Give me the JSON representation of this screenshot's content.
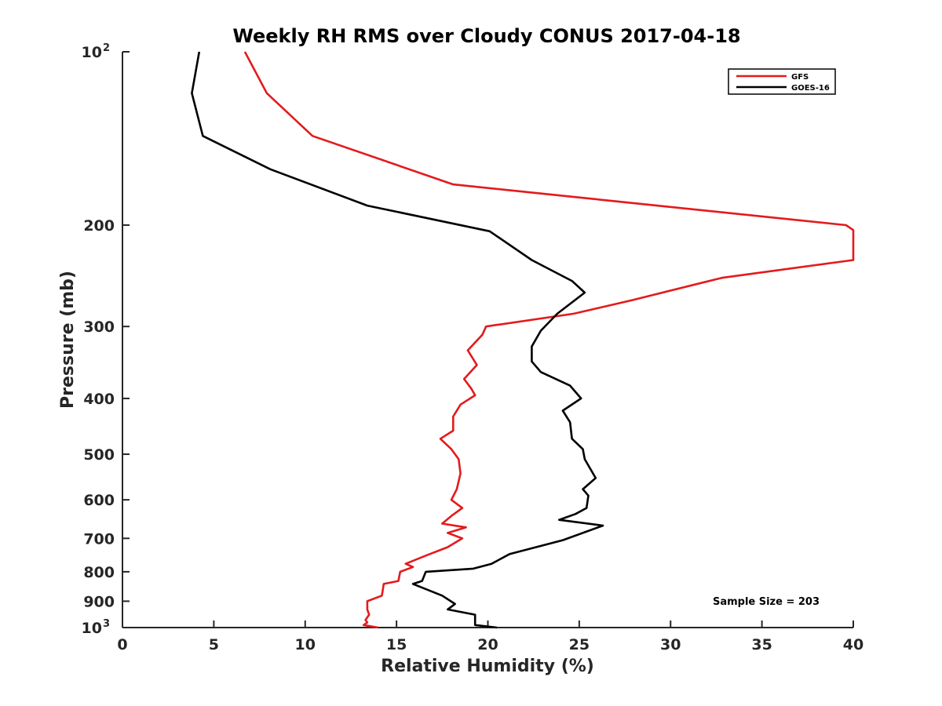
{
  "chart_data": {
    "type": "line",
    "title": "Weekly RH RMS over Cloudy CONUS 2017-04-18",
    "xlabel": "Relative Humidity (%)",
    "ylabel": "Pressure (mb)",
    "xlim": [
      0,
      40
    ],
    "ylim": [
      100,
      1000
    ],
    "y_scale": "log",
    "y_reversed": true,
    "grid": false,
    "legend_position": "top-right",
    "x_ticks": [
      "0",
      "5",
      "10",
      "15",
      "20",
      "25",
      "30",
      "35",
      "40"
    ],
    "y_ticks": [
      {
        "value": 100,
        "base": "10",
        "exp": "2"
      },
      {
        "value": 200,
        "label": "200"
      },
      {
        "value": 300,
        "label": "300"
      },
      {
        "value": 400,
        "label": "400"
      },
      {
        "value": 500,
        "label": "500"
      },
      {
        "value": 600,
        "label": "600"
      },
      {
        "value": 700,
        "label": "700"
      },
      {
        "value": 800,
        "label": "800"
      },
      {
        "value": 900,
        "label": "900"
      },
      {
        "value": 1000,
        "base": "10",
        "exp": "3"
      }
    ],
    "annotation": "Sample Size = 203",
    "series": [
      {
        "name": "GFS",
        "color": "#e41a1c",
        "points": [
          [
            6.7,
            100
          ],
          [
            7.9,
            118
          ],
          [
            10.4,
            140
          ],
          [
            18.1,
            170
          ],
          [
            39.6,
            200
          ],
          [
            40.0,
            204
          ],
          [
            40.0,
            230
          ],
          [
            32.8,
            247
          ],
          [
            27.9,
            270
          ],
          [
            24.7,
            285
          ],
          [
            19.9,
            300
          ],
          [
            19.7,
            310
          ],
          [
            18.9,
            330
          ],
          [
            19.4,
            350
          ],
          [
            18.7,
            370
          ],
          [
            19.1,
            385
          ],
          [
            19.3,
            395
          ],
          [
            18.5,
            410
          ],
          [
            18.1,
            430
          ],
          [
            18.1,
            455
          ],
          [
            17.4,
            470
          ],
          [
            18.0,
            490
          ],
          [
            18.4,
            510
          ],
          [
            18.5,
            540
          ],
          [
            18.3,
            575
          ],
          [
            18.0,
            600
          ],
          [
            18.6,
            620
          ],
          [
            18.0,
            640
          ],
          [
            17.5,
            660
          ],
          [
            18.8,
            670
          ],
          [
            17.8,
            685
          ],
          [
            18.6,
            700
          ],
          [
            17.8,
            725
          ],
          [
            16.6,
            750
          ],
          [
            15.5,
            775
          ],
          [
            15.9,
            785
          ],
          [
            15.2,
            800
          ],
          [
            15.1,
            830
          ],
          [
            14.3,
            840
          ],
          [
            14.2,
            880
          ],
          [
            13.4,
            900
          ],
          [
            13.4,
            930
          ],
          [
            13.5,
            950
          ],
          [
            13.3,
            970
          ],
          [
            13.4,
            980
          ],
          [
            13.2,
            990
          ],
          [
            14.0,
            1000
          ]
        ]
      },
      {
        "name": "GOES-16",
        "color": "#000000",
        "points": [
          [
            4.2,
            100
          ],
          [
            3.8,
            118
          ],
          [
            4.4,
            140
          ],
          [
            8.1,
            160
          ],
          [
            13.4,
            185
          ],
          [
            20.1,
            205
          ],
          [
            22.4,
            230
          ],
          [
            24.6,
            250
          ],
          [
            25.3,
            262
          ],
          [
            23.8,
            285
          ],
          [
            22.9,
            305
          ],
          [
            22.4,
            325
          ],
          [
            22.4,
            345
          ],
          [
            22.9,
            360
          ],
          [
            24.5,
            380
          ],
          [
            25.1,
            400
          ],
          [
            24.1,
            420
          ],
          [
            24.5,
            440
          ],
          [
            24.6,
            470
          ],
          [
            25.2,
            490
          ],
          [
            25.3,
            510
          ],
          [
            25.9,
            550
          ],
          [
            25.2,
            575
          ],
          [
            25.5,
            590
          ],
          [
            25.4,
            620
          ],
          [
            24.8,
            635
          ],
          [
            23.9,
            650
          ],
          [
            26.3,
            665
          ],
          [
            24.1,
            705
          ],
          [
            21.2,
            745
          ],
          [
            20.2,
            775
          ],
          [
            19.2,
            790
          ],
          [
            16.6,
            800
          ],
          [
            16.4,
            830
          ],
          [
            15.9,
            840
          ],
          [
            17.5,
            880
          ],
          [
            18.2,
            910
          ],
          [
            17.8,
            930
          ],
          [
            19.3,
            950
          ],
          [
            19.3,
            990
          ],
          [
            20.5,
            1000
          ]
        ]
      }
    ]
  }
}
